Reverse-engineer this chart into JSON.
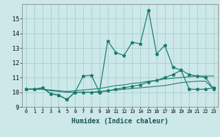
{
  "xlabel": "Humidex (Indice chaleur)",
  "x": [
    0,
    1,
    2,
    3,
    4,
    5,
    6,
    7,
    8,
    9,
    10,
    11,
    12,
    13,
    14,
    15,
    16,
    17,
    18,
    19,
    20,
    21,
    22,
    23
  ],
  "line1": [
    10.2,
    10.2,
    10.3,
    9.9,
    9.8,
    9.5,
    10.0,
    11.1,
    11.15,
    10.0,
    13.5,
    12.7,
    12.5,
    13.4,
    13.3,
    15.6,
    12.6,
    13.2,
    11.7,
    11.5,
    10.2,
    10.2,
    10.2,
    10.3
  ],
  "line2": [
    10.2,
    10.2,
    10.3,
    9.9,
    9.8,
    9.5,
    10.0,
    10.0,
    10.0,
    10.0,
    10.1,
    10.2,
    10.3,
    10.4,
    10.5,
    10.7,
    10.8,
    11.0,
    11.2,
    11.5,
    11.2,
    11.1,
    11.0,
    10.2
  ],
  "line3": [
    10.2,
    10.2,
    10.2,
    10.15,
    10.1,
    10.05,
    10.1,
    10.15,
    10.2,
    10.25,
    10.35,
    10.45,
    10.5,
    10.6,
    10.65,
    10.75,
    10.8,
    10.9,
    10.95,
    11.0,
    11.05,
    11.1,
    11.1,
    11.1
  ],
  "line4": [
    10.2,
    10.2,
    10.2,
    10.1,
    10.05,
    10.0,
    10.0,
    10.0,
    10.0,
    10.05,
    10.1,
    10.15,
    10.2,
    10.25,
    10.3,
    10.35,
    10.4,
    10.45,
    10.55,
    10.65,
    10.7,
    10.75,
    10.75,
    10.2
  ],
  "color": "#1a7a6e",
  "bg_color": "#cce8e8",
  "grid_color": "#aacece",
  "ylim": [
    9,
    16
  ],
  "yticks": [
    9,
    10,
    11,
    12,
    13,
    14,
    15
  ],
  "marker": "*",
  "markersize": 3.5
}
